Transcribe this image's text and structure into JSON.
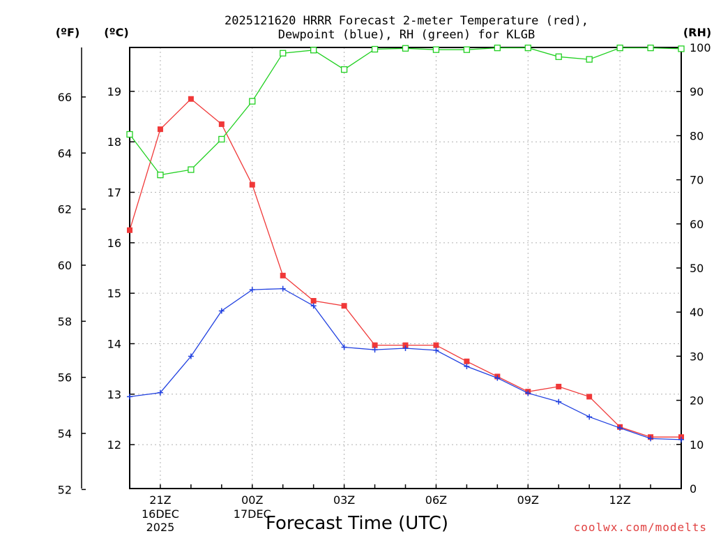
{
  "chart_data": {
    "type": "line",
    "title_line1": "2025121620 HRRR Forecast 2-meter Temperature (red),",
    "title_line2": "Dewpoint (blue), RH (green) for KLGB",
    "xlabel": "Forecast Time (UTC)",
    "credit": "coolwx.com/modelts",
    "units": {
      "fahrenheit": "(ºF)",
      "celsius": "(ºC)",
      "rh": "(RH)"
    },
    "x_hours": [
      0,
      1,
      2,
      3,
      4,
      5,
      6,
      7,
      8,
      9,
      10,
      11,
      12,
      13,
      14,
      15,
      16,
      17,
      18
    ],
    "x_ticks": [
      {
        "h": 1,
        "label": "21Z",
        "sub1": "16DEC",
        "sub2": "2025"
      },
      {
        "h": 4,
        "label": "00Z",
        "sub1": "17DEC",
        "sub2": ""
      },
      {
        "h": 7,
        "label": "03Z",
        "sub1": "",
        "sub2": ""
      },
      {
        "h": 10,
        "label": "06Z",
        "sub1": "",
        "sub2": ""
      },
      {
        "h": 13,
        "label": "09Z",
        "sub1": "",
        "sub2": ""
      },
      {
        "h": 16,
        "label": "12Z",
        "sub1": "",
        "sub2": ""
      }
    ],
    "celsius_ticks": [
      "12",
      "13",
      "14",
      "15",
      "16",
      "17",
      "18",
      "19"
    ],
    "fahrenheit_ticks": [
      "52",
      "54",
      "56",
      "58",
      "60",
      "62",
      "64",
      "66"
    ],
    "rh_ticks": [
      "0",
      "10",
      "20",
      "30",
      "40",
      "50",
      "60",
      "70",
      "80",
      "90",
      "100"
    ],
    "ylim_celsius": [
      11.13,
      19.87
    ],
    "ylim_rh": [
      0,
      100
    ],
    "series": [
      {
        "name": "Temperature",
        "color": "#f03838",
        "values": [
          16.25,
          18.25,
          18.85,
          18.35,
          17.15,
          15.35,
          14.85,
          14.75,
          13.97,
          13.97,
          13.97,
          13.65,
          13.35,
          13.05,
          13.15,
          12.95,
          12.35,
          12.15,
          12.15
        ]
      },
      {
        "name": "Dewpoint",
        "color": "#2040e0",
        "values": [
          12.95,
          13.03,
          13.75,
          14.65,
          15.07,
          15.09,
          14.75,
          13.93,
          13.88,
          13.91,
          13.87,
          13.55,
          13.32,
          13.02,
          12.85,
          12.55,
          12.33,
          12.12,
          12.1
        ]
      },
      {
        "name": "RH",
        "color": "#20d020",
        "values": [
          80.3,
          71.1,
          72.3,
          79.2,
          87.8,
          98.7,
          99.4,
          95.0,
          99.6,
          99.8,
          99.5,
          99.5,
          99.9,
          99.9,
          97.9,
          97.3,
          99.9,
          99.9,
          99.7
        ]
      }
    ]
  }
}
